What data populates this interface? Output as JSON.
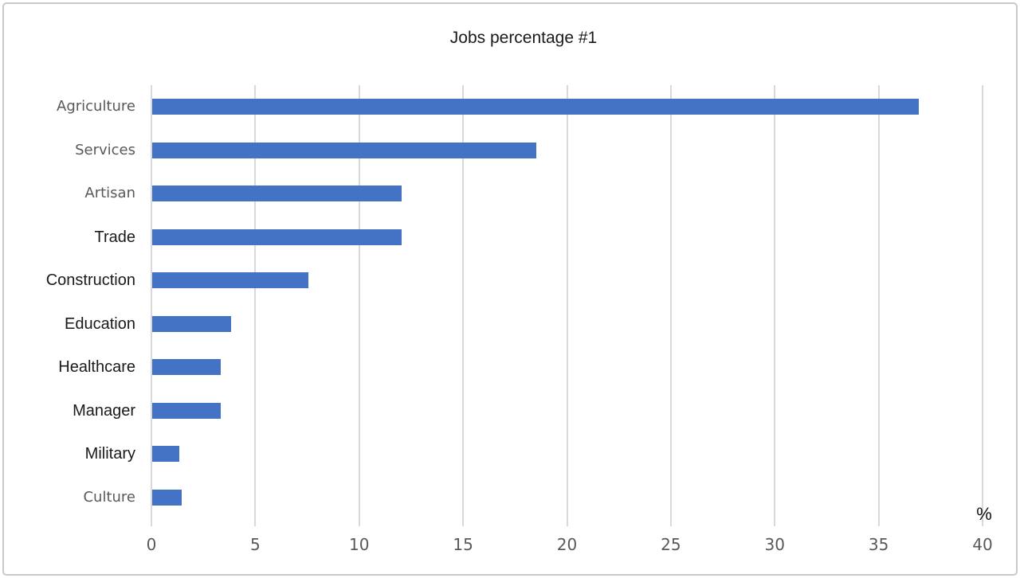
{
  "chart_data": {
    "type": "bar",
    "orientation": "horizontal",
    "title": "Jobs percentage #1",
    "categories": [
      "Agriculture",
      "Services",
      "Artisan",
      "Trade",
      "Construction",
      "Education",
      "Healthcare",
      "Manager",
      "Military",
      "Culture"
    ],
    "values": [
      36.9,
      18.5,
      12,
      12,
      7.5,
      3.8,
      3.3,
      3.3,
      1.3,
      1.4
    ],
    "label_muted": [
      true,
      true,
      true,
      false,
      false,
      false,
      false,
      false,
      false,
      true
    ],
    "xlabel": "%",
    "xlim": [
      0,
      40
    ],
    "xticks": [
      0,
      5,
      10,
      15,
      20,
      25,
      30,
      35,
      40
    ],
    "grid": true,
    "legend": false,
    "colors": {
      "bar": "#4472C4",
      "gridline": "#D9D9D9",
      "tick_label": "#595959",
      "category_muted": "#595959",
      "category_normal": "#1A1A1A",
      "title": "#1A1A1A",
      "frame_border": "#C9C9C9"
    }
  }
}
